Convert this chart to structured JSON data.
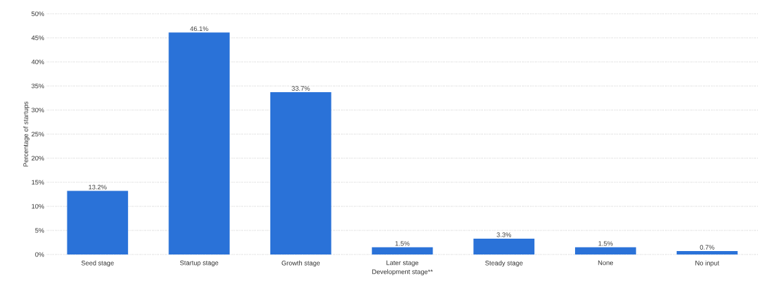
{
  "chart_data": {
    "type": "bar",
    "xlabel": "Development stage**",
    "ylabel": "Percentage of startups",
    "categories": [
      "Seed stage",
      "Startup stage",
      "Growth stage",
      "Later stage",
      "Steady stage",
      "None",
      "No input"
    ],
    "values": [
      13.2,
      46.1,
      33.7,
      1.5,
      3.3,
      1.5,
      0.7
    ],
    "value_labels": [
      "13.2%",
      "46.1%",
      "33.7%",
      "1.5%",
      "3.3%",
      "1.5%",
      "0.7%"
    ],
    "color": "#2a72d8",
    "ylim": [
      0,
      50
    ],
    "yticks": [
      {
        "value": 0,
        "label": "0%"
      },
      {
        "value": 5,
        "label": "5%"
      },
      {
        "value": 10,
        "label": "10%"
      },
      {
        "value": 15,
        "label": "15%"
      },
      {
        "value": 20,
        "label": "20%"
      },
      {
        "value": 25,
        "label": "25%"
      },
      {
        "value": 30,
        "label": "30%"
      },
      {
        "value": 35,
        "label": "35%"
      },
      {
        "value": 40,
        "label": "40%"
      },
      {
        "value": 45,
        "label": "45%"
      },
      {
        "value": 50,
        "label": "50%"
      }
    ],
    "grid": "y"
  }
}
